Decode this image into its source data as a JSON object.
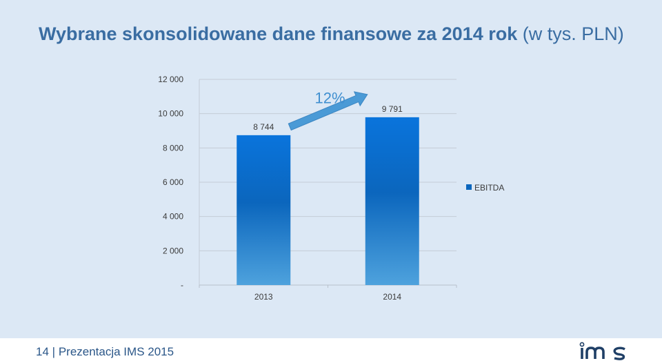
{
  "slide": {
    "title_bold": "Wybrane skonsolidowane dane finansowe za 2014 rok",
    "title_rest": " (w tys. PLN)"
  },
  "chart_data": {
    "type": "bar",
    "categories": [
      "2013",
      "2014"
    ],
    "series": [
      {
        "name": "EBITDA",
        "values": [
          8744,
          9791
        ],
        "labels": [
          "8 744",
          "9 791"
        ]
      }
    ],
    "ylim": [
      0,
      12000
    ],
    "yticks": [
      0,
      2000,
      4000,
      6000,
      8000,
      10000,
      12000
    ],
    "ytick_labels": [
      "-",
      "2 000",
      "4 000",
      "6 000",
      "8 000",
      "10 000",
      "12 000"
    ],
    "grid": true,
    "legend": "right",
    "annotation": {
      "text": "12%",
      "from": "2013",
      "to": "2014"
    },
    "colors": {
      "bar_top": "#0a74dc",
      "bar_mid": "#0b66bd",
      "bar_bottom": "#4ea2dd",
      "arrow": "#4a9ad6",
      "grid": "#c4ccd6",
      "axis_text": "#3a3a3a",
      "annotation": "#3f8fd0"
    }
  },
  "footer": {
    "page_number": "14",
    "separator": "|",
    "label": "Prezentacja IMS 2015",
    "logo_text": "ims",
    "brand_color": "#1f3f66"
  }
}
